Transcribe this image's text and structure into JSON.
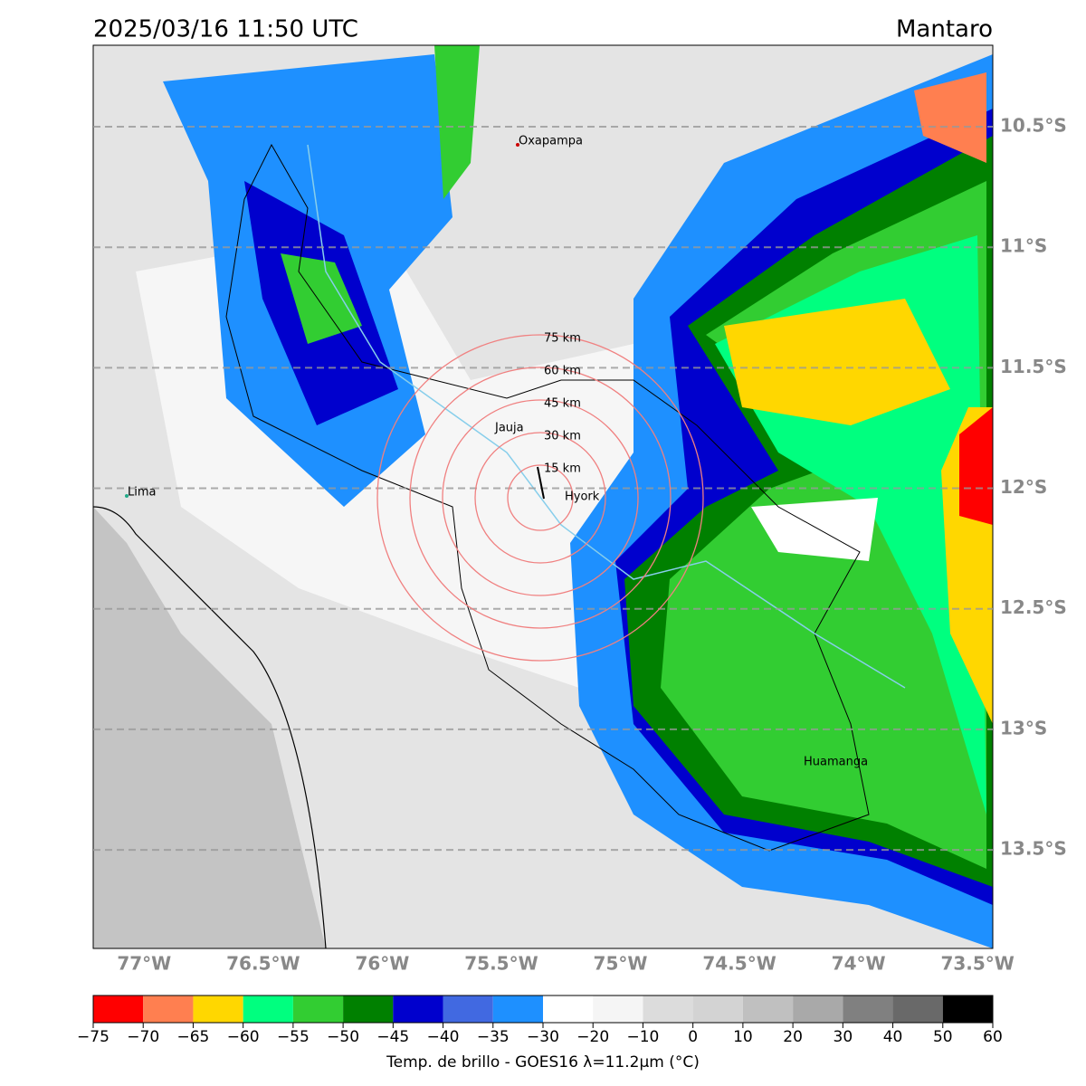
{
  "header": {
    "title": "2025/03/16 11:50 UTC",
    "region": "Mantaro"
  },
  "map": {
    "lon_lim": [
      -77.214,
      -73.436
    ],
    "lat_lim": [
      -10.162,
      -13.909
    ],
    "lon_ticks": [
      {
        "value": -77,
        "label": "77°W"
      },
      {
        "value": -76.5,
        "label": "76.5°W"
      },
      {
        "value": -76,
        "label": "76°W"
      },
      {
        "value": -75.5,
        "label": "75.5°W"
      },
      {
        "value": -75,
        "label": "75°W"
      },
      {
        "value": -74.5,
        "label": "74.5°W"
      },
      {
        "value": -74,
        "label": "74°W"
      },
      {
        "value": -73.5,
        "label": "73.5°W"
      }
    ],
    "lat_ticks": [
      {
        "value": -10.5,
        "label": "10.5°S"
      },
      {
        "value": -11,
        "label": "11°S"
      },
      {
        "value": -11.5,
        "label": "11.5°S"
      },
      {
        "value": -12,
        "label": "12°S"
      },
      {
        "value": -12.5,
        "label": "12.5°S"
      },
      {
        "value": -13,
        "label": "13°S"
      },
      {
        "value": -13.5,
        "label": "13.5°S"
      }
    ],
    "places": [
      "Oxapampa",
      "Jauja",
      "Hyork",
      "Lima",
      "Huamanga"
    ],
    "rings": [
      {
        "value": 15,
        "label": "15 km"
      },
      {
        "value": 30,
        "label": "30 km"
      },
      {
        "value": 45,
        "label": "45 km"
      },
      {
        "value": 60,
        "label": "60 km"
      },
      {
        "value": 75,
        "label": "75 km"
      }
    ]
  },
  "colorbar": {
    "ticks": [
      {
        "value": -75,
        "label": "−75"
      },
      {
        "value": -70,
        "label": "−70"
      },
      {
        "value": -65,
        "label": "−65"
      },
      {
        "value": -60,
        "label": "−60"
      },
      {
        "value": -55,
        "label": "−55"
      },
      {
        "value": -50,
        "label": "−50"
      },
      {
        "value": -45,
        "label": "−45"
      },
      {
        "value": -40,
        "label": "−40"
      },
      {
        "value": -35,
        "label": "−35"
      },
      {
        "value": -30,
        "label": "−30"
      },
      {
        "value": -20,
        "label": "−20"
      },
      {
        "value": -10,
        "label": "−10"
      },
      0,
      10,
      20,
      30,
      40,
      50,
      60
    ],
    "colors": [
      "#ff0000",
      "#ff7f50",
      "#ffd700",
      "#00ff7f",
      "#32cd32",
      "#008000",
      "#0000cd",
      "#4169e1",
      "#1e90ff",
      "#ffffff",
      "#f5f5f5",
      "#dcdcdc",
      "#d3d3d3",
      "#c0c0c0",
      "#a9a9a9",
      "#808080",
      "#696969",
      "#000000"
    ],
    "label": "Temp. de brillo - GOES16 λ=11.2μm (°C)"
  }
}
